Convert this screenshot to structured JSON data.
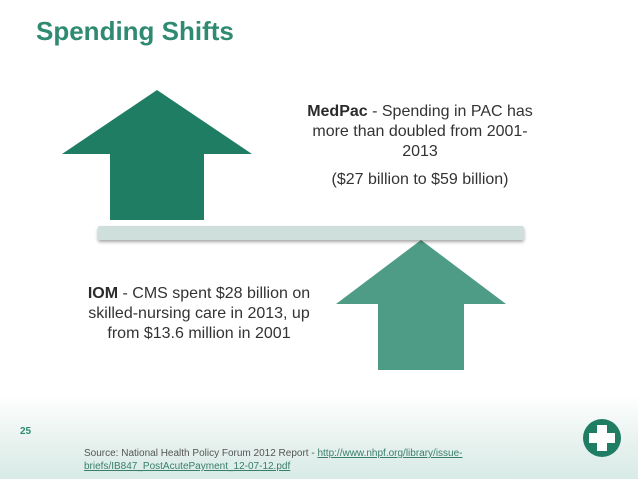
{
  "slide": {
    "title": "Spending Shifts",
    "number": "25"
  },
  "medpac": {
    "lead": "MedPac",
    "text": " - Spending in PAC has more than doubled from 2001-2013",
    "range": "($27 billion to $59 billion)"
  },
  "iom": {
    "lead": "IOM",
    "text": " - CMS spent $28 billion on skilled-nursing care in 2013, up from $13.6 million in 2001"
  },
  "source": {
    "prefix": "Source: National Health Policy Forum 2012 Report - ",
    "link": "http://www.nhpf.org/library/issue-briefs/IB847_PostAcutePayment_12-07-12.pdf"
  },
  "colors": {
    "title": "#2f8a72",
    "arrow_dark": "#1f7d63",
    "arrow_light": "#4e9c86",
    "bar": "#cfe0dc"
  },
  "icons": {
    "logo": "medical-cross-icon"
  }
}
